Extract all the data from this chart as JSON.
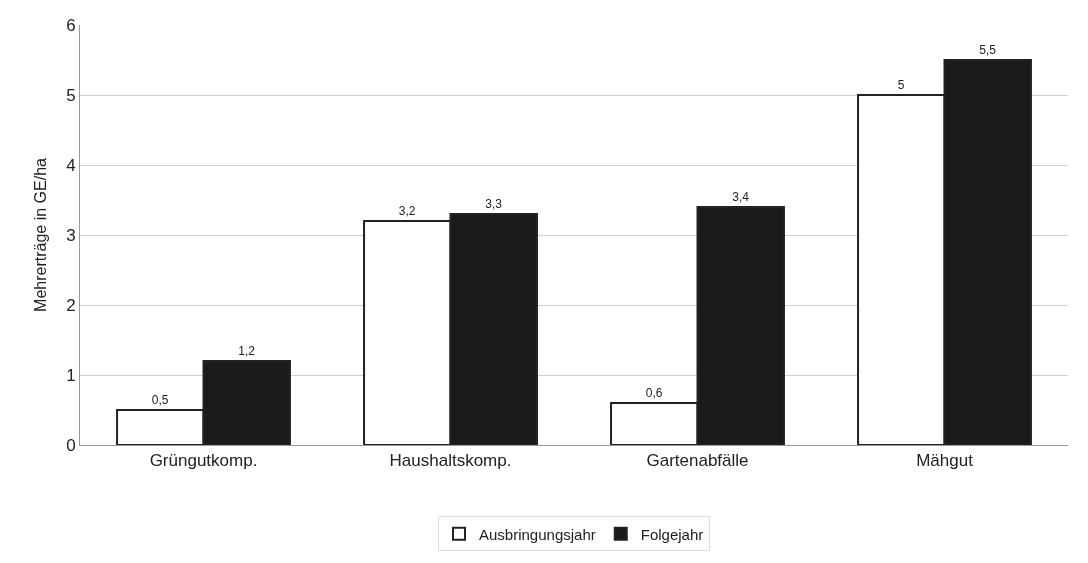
{
  "chart_data": {
    "type": "bar",
    "ylabel": "Mehrerträge in GE/ha",
    "categories": [
      "Grüngutkomp.",
      "Haushaltskomp.",
      "Gartenabfälle",
      "Mähgut"
    ],
    "series": [
      {
        "name": "Ausbringungsjahr",
        "color": "#ffffff",
        "values": [
          0.5,
          3.2,
          0.6,
          5
        ],
        "value_labels": [
          "0,5",
          "3,2",
          "0,6",
          "5"
        ]
      },
      {
        "name": "Folgejahr",
        "color": "#1a1a1a",
        "values": [
          1.2,
          3.3,
          3.4,
          5.5
        ],
        "value_labels": [
          "1,2",
          "3,3",
          "3,4",
          "5,5"
        ]
      }
    ],
    "ylim": [
      0,
      6
    ],
    "yticks": [
      0,
      1,
      2,
      3,
      4,
      5,
      6
    ],
    "grid": "y",
    "legend": "bottom"
  }
}
